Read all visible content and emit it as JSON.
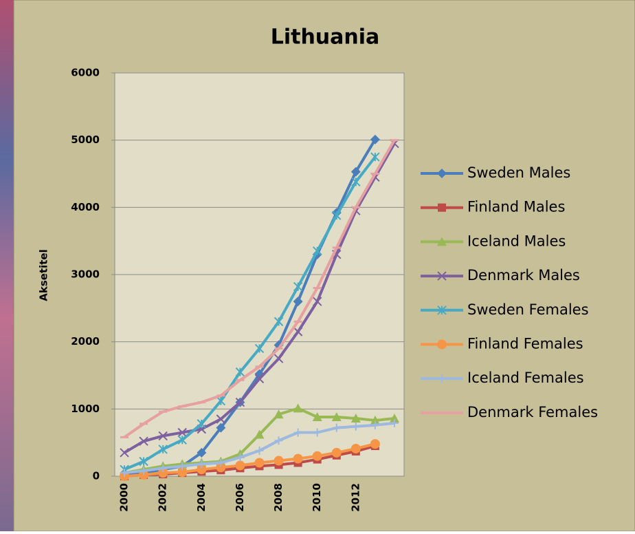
{
  "chart_data": {
    "type": "line",
    "title": "Lithuania",
    "y_label": "Aksetitel",
    "categories": [
      "2000",
      null,
      "2002",
      null,
      "2004",
      null,
      "2006",
      null,
      "2008",
      null,
      "2010",
      null,
      "2012",
      null,
      null
    ],
    "ylim": [
      0,
      6000
    ],
    "yticks": [
      0,
      1000,
      2000,
      3000,
      4000,
      5000,
      6000
    ],
    "grid": true,
    "legend": "right",
    "series": [
      {
        "name": "Sweden Males",
        "color": "#4a7ebb",
        "marker": "diamond",
        "values": [
          20,
          50,
          100,
          150,
          350,
          720,
          1100,
          1520,
          1950,
          2600,
          3300,
          3920,
          4530,
          5010,
          null
        ]
      },
      {
        "name": "Finland Males",
        "color": "#be4b48",
        "marker": "square",
        "values": [
          0,
          20,
          30,
          50,
          70,
          90,
          120,
          150,
          170,
          200,
          250,
          310,
          370,
          450,
          null
        ]
      },
      {
        "name": "Iceland Males",
        "color": "#98b954",
        "marker": "triangle",
        "values": [
          50,
          100,
          150,
          180,
          200,
          220,
          330,
          620,
          920,
          1010,
          880,
          880,
          860,
          830,
          860
        ]
      },
      {
        "name": "Denmark Males",
        "color": "#7d60a0",
        "marker": "x",
        "values": [
          350,
          520,
          600,
          650,
          700,
          850,
          1100,
          1450,
          1750,
          2150,
          2600,
          3300,
          3950,
          4450,
          4950
        ]
      },
      {
        "name": "Sweden Females",
        "color": "#46aac5",
        "marker": "star",
        "values": [
          100,
          220,
          400,
          540,
          780,
          1120,
          1550,
          1900,
          2300,
          2820,
          3350,
          3880,
          4380,
          4750,
          null
        ]
      },
      {
        "name": "Finland Females",
        "color": "#f69546",
        "marker": "circle",
        "values": [
          0,
          20,
          50,
          60,
          100,
          130,
          160,
          200,
          230,
          260,
          300,
          350,
          410,
          480,
          null
        ]
      },
      {
        "name": "Iceland Females",
        "color": "#9db9e0",
        "marker": "plus",
        "values": [
          50,
          80,
          120,
          150,
          180,
          200,
          280,
          380,
          530,
          650,
          650,
          720,
          740,
          760,
          790
        ]
      },
      {
        "name": "Denmark Females",
        "color": "#e6a0a0",
        "marker": "dash",
        "values": [
          580,
          780,
          960,
          1040,
          1100,
          1200,
          1430,
          1630,
          1900,
          2300,
          2800,
          3400,
          4000,
          4500,
          5000
        ]
      }
    ]
  }
}
